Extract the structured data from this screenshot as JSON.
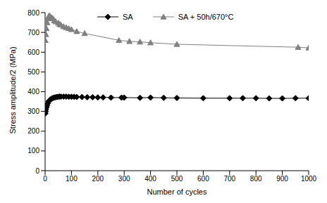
{
  "chart_data": {
    "type": "line",
    "x_label": "Number of cycles",
    "y_label": "Stress amplitude/2 (MPa)",
    "xlim": [
      0,
      1000
    ],
    "xticks": [
      0,
      100,
      200,
      300,
      400,
      500,
      600,
      700,
      800,
      900,
      1000
    ],
    "ylim": [
      0,
      800
    ],
    "yticks": [
      0,
      100,
      200,
      300,
      400,
      500,
      600,
      700,
      800
    ],
    "grid": false,
    "legend": "top",
    "series": [
      {
        "name": "SA",
        "color": "#000000",
        "marker": "diamond",
        "x": [
          1,
          2,
          3,
          5,
          7,
          10,
          13,
          16,
          20,
          25,
          30,
          35,
          40,
          45,
          50,
          55,
          60,
          70,
          80,
          90,
          100,
          110,
          120,
          140,
          160,
          180,
          200,
          220,
          250,
          290,
          300,
          360,
          400,
          450,
          500,
          600,
          700,
          750,
          800,
          850,
          900,
          950,
          1000
        ],
        "values": [
          290,
          300,
          310,
          320,
          330,
          340,
          350,
          355,
          360,
          365,
          368,
          370,
          372,
          373,
          374,
          375,
          375,
          375,
          375,
          374,
          374,
          374,
          373,
          373,
          372,
          372,
          371,
          371,
          370,
          370,
          370,
          369,
          370,
          369,
          368,
          367,
          367,
          367,
          367,
          366,
          366,
          367,
          367
        ]
      },
      {
        "name": "SA + 50h/670°C",
        "color": "#808080",
        "marker": "triangle",
        "x": [
          1,
          3,
          5,
          8,
          10,
          13,
          16,
          20,
          25,
          30,
          35,
          40,
          50,
          55,
          60,
          70,
          80,
          90,
          100,
          120,
          150,
          280,
          320,
          360,
          400,
          500,
          960,
          1000
        ],
        "values": [
          660,
          690,
          720,
          750,
          770,
          780,
          785,
          780,
          775,
          770,
          760,
          755,
          748,
          742,
          738,
          730,
          725,
          720,
          715,
          705,
          695,
          660,
          655,
          652,
          648,
          640,
          625,
          622
        ]
      }
    ]
  }
}
